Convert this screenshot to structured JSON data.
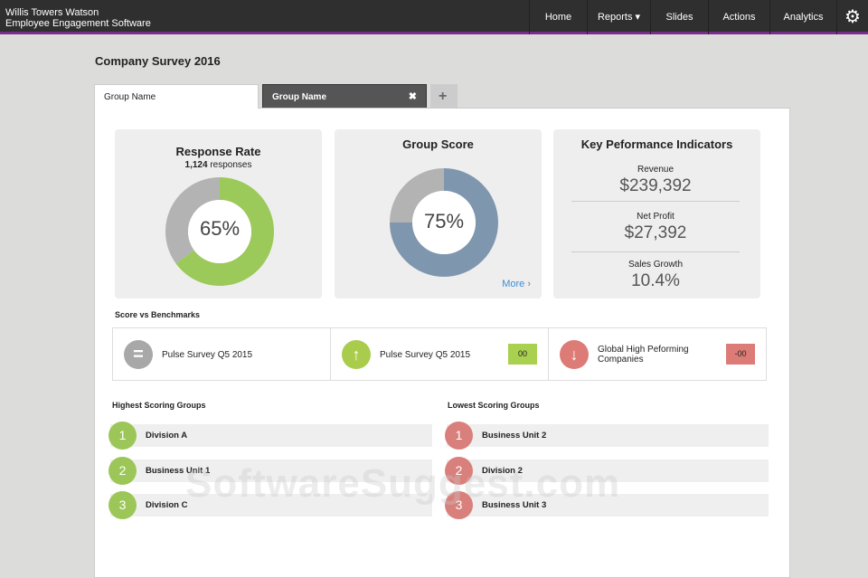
{
  "header": {
    "brand_line1": "Willis Towers Watson",
    "brand_line2": "Employee Engagement Software",
    "nav": [
      {
        "label": "Home"
      },
      {
        "label": "Reports ▾"
      },
      {
        "label": "Slides"
      },
      {
        "label": "Actions"
      },
      {
        "label": "Analytics"
      }
    ],
    "settings_icon": "gear-icon"
  },
  "page_title": "Company Survey 2016",
  "tabs": [
    {
      "label": "Group Name",
      "active": true
    },
    {
      "label": "Group Name",
      "active": false,
      "close": "✖"
    }
  ],
  "add_tab": "+",
  "response_rate": {
    "title": "Response Rate",
    "count": "1,124",
    "count_suffix": " responses",
    "value": "65%",
    "percent": 65,
    "color": "#9bc95a"
  },
  "group_score": {
    "title": "Group Score",
    "value": "75%",
    "percent": 75,
    "color": "#7f97ae",
    "more": "More"
  },
  "kpi": {
    "title": "Key Peformance Indicators",
    "items": [
      {
        "label": "Revenue",
        "value": "$239,392"
      },
      {
        "label": "Net Profit",
        "value": "$27,392"
      },
      {
        "label": "Sales Growth",
        "value": "10.4%"
      }
    ]
  },
  "benchmarks": {
    "title": "Score vs Benchmarks",
    "items": [
      {
        "icon": "equal-icon",
        "label": "Pulse Survey Q5 2015",
        "badge": ""
      },
      {
        "icon": "arrow-up-icon",
        "label": "Pulse Survey Q5 2015",
        "badge": "00"
      },
      {
        "icon": "arrow-down-icon",
        "label": "Global High Peforming Companies",
        "badge": "-00"
      }
    ]
  },
  "highest": {
    "title": "Highest Scoring Groups",
    "items": [
      {
        "rank": "1",
        "label": "Division A"
      },
      {
        "rank": "2",
        "label": "Business Unit 1"
      },
      {
        "rank": "3",
        "label": "Division C"
      }
    ]
  },
  "lowest": {
    "title": "Lowest Scoring Groups",
    "items": [
      {
        "rank": "1",
        "label": "Business Unit 2"
      },
      {
        "rank": "2",
        "label": "Division 2"
      },
      {
        "rank": "3",
        "label": "Business Unit 3"
      }
    ]
  },
  "watermark": "SoftwareSuggest.com"
}
